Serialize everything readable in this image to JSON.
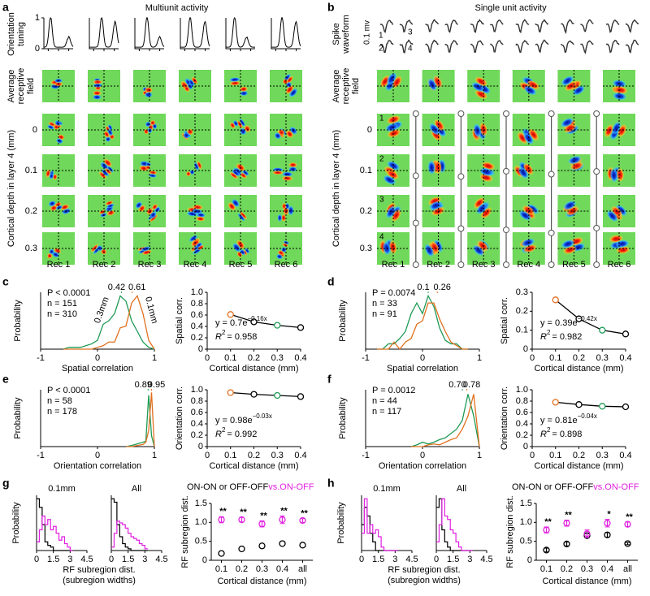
{
  "panels": {
    "a": {
      "letter": "a",
      "title": "Multiunit activity",
      "tuning_label": [
        "Orientation",
        "tuning"
      ],
      "tuning_yticks": [
        0,
        1
      ],
      "rf_label": [
        "Average",
        "receptive",
        "field"
      ],
      "depth_axis_label": "Cortical depth in layer 4 (mm)",
      "depths": [
        0,
        0.1,
        0.2,
        0.3
      ],
      "recordings": [
        "Rec 1",
        "Rec 2",
        "Rec 3",
        "Rec 4",
        "Rec 5",
        "Rec 6"
      ]
    },
    "b": {
      "letter": "b",
      "title": "Single unit activity",
      "waveform_label": [
        "Spike",
        "waveform"
      ],
      "scale_label": "0.1 mv",
      "waveform_units": [
        "1",
        "2",
        "3",
        "4"
      ],
      "rf_label": [
        "Average",
        "receptive",
        "field"
      ],
      "depth_axis_label": "Cortical depth in layer 4 (mm)",
      "depths": [
        0,
        0.1,
        0.2,
        0.3
      ],
      "unit_numbers": [
        "1",
        "2",
        "3",
        "4"
      ],
      "recordings": [
        "Rec 1",
        "Rec 2",
        "Rec 3",
        "Rec 4",
        "Rec 5",
        "Rec 6"
      ]
    },
    "c": {
      "type": "correlation",
      "letter": "c",
      "hist": {
        "xlabel": "Spatial correlation",
        "ylabel": "Probability",
        "xlim": [
          -1,
          1
        ],
        "xticks": [
          -1,
          0,
          1
        ],
        "ylim": [
          0,
          0.32
        ],
        "stat": "P < 0.0001",
        "x": [
          -0.6,
          -0.5,
          -0.4,
          -0.3,
          -0.2,
          -0.1,
          0,
          0.1,
          0.2,
          0.3,
          0.4,
          0.5,
          0.6,
          0.7,
          0.8,
          0.9,
          1.0
        ],
        "series": [
          {
            "name": "n = 151",
            "color": "#1f9a55",
            "peak": {
              "value": 0.42,
              "label": "0.42"
            },
            "distance_label": "0.3mm",
            "values": [
              0,
              0.01,
              0.01,
              0.01,
              0.02,
              0.03,
              0.05,
              0.14,
              0.16,
              0.2,
              0.3,
              0.27,
              0.16,
              0.1,
              0.04,
              0.01,
              0
            ]
          },
          {
            "name": "n = 310",
            "color": "#e0701e",
            "peak": {
              "value": 0.61,
              "label": "0.61"
            },
            "distance_label": "0.1mm",
            "values": [
              0,
              0,
              0,
              0,
              0,
              0,
              0.01,
              0.02,
              0.04,
              0.04,
              0.12,
              0.13,
              0.26,
              0.3,
              0.2,
              0.05,
              0
            ]
          }
        ]
      },
      "fit": {
        "xlabel": "Cortical distance (mm)",
        "ylabel": "Spatial corr.",
        "xlim": [
          0,
          0.4
        ],
        "xticks": [
          0,
          0.1,
          0.2,
          0.3,
          0.4
        ],
        "ylim": [
          0,
          1
        ],
        "yticks": [
          0,
          0.2,
          0.4,
          0.6,
          0.8,
          {
            "value": 1,
            "label": "1.0"
          }
        ],
        "x": [
          0.1,
          0.2,
          0.3,
          0.4
        ],
        "values": [
          0.61,
          0.48,
          0.42,
          0.38
        ],
        "point_colors": [
          "#e0701e",
          "#000000",
          "#1f9a55",
          "#000000"
        ],
        "equation": {
          "base": "y = 0.7e",
          "exponent": "−0.16x"
        },
        "r2": {
          "symbol": "R",
          "power": "2",
          "text": "= 0.958"
        }
      }
    },
    "d": {
      "type": "correlation",
      "letter": "d",
      "hist": {
        "xlabel": "Spatial correlation",
        "ylabel": "Probability",
        "xlim": [
          -1,
          1
        ],
        "xticks": [
          -1,
          0,
          1
        ],
        "ylim": [
          0,
          0.32
        ],
        "stat": "P = 0.0074",
        "x": [
          -0.8,
          -0.7,
          -0.6,
          -0.5,
          -0.4,
          -0.3,
          -0.2,
          -0.1,
          0,
          0.1,
          0.2,
          0.3,
          0.4,
          0.5,
          0.6,
          0.7,
          0.8
        ],
        "series": [
          {
            "name": "n = 33",
            "color": "#1f9a55",
            "peak": {
              "value": 0.1,
              "label": "0.1"
            },
            "values": [
              0,
              0,
              0.03,
              0.03,
              0.06,
              0.1,
              0.2,
              0.26,
              0.2,
              0.3,
              0.24,
              0.12,
              0.05,
              0.03,
              0.03,
              0,
              0
            ]
          },
          {
            "name": "n = 91",
            "color": "#e0701e",
            "peak": {
              "value": 0.26,
              "label": "0.26"
            },
            "values": [
              0,
              0,
              0,
              0.04,
              0,
              0.04,
              0.06,
              0.14,
              0.16,
              0.26,
              0.26,
              0.17,
              0.1,
              0.04,
              0.02,
              0,
              0
            ]
          }
        ]
      },
      "fit": {
        "xlabel": "Cortical distance (mm)",
        "ylabel": "Spatial corr.",
        "xlim": [
          0,
          0.4
        ],
        "xticks": [
          0,
          0.1,
          0.2,
          0.3,
          0.4
        ],
        "ylim": [
          0,
          0.3
        ],
        "yticks": [
          0,
          0.1,
          0.2,
          0.3
        ],
        "x": [
          0.1,
          0.2,
          0.3,
          0.4
        ],
        "values": [
          0.26,
          0.16,
          0.1,
          0.08
        ],
        "point_colors": [
          "#e0701e",
          "#000000",
          "#1f9a55",
          "#000000"
        ],
        "equation": {
          "base": "y = 0.39e",
          "exponent": "−0.42x"
        },
        "r2": {
          "symbol": "R",
          "power": "2",
          "text": "= 0.982"
        }
      }
    },
    "e": {
      "type": "correlation",
      "letter": "e",
      "hist": {
        "xlabel": "Orientation correlation",
        "ylabel": "Probability",
        "xlim": [
          -1,
          1
        ],
        "xticks": [
          -1,
          0,
          1
        ],
        "ylim": [
          0,
          1.05
        ],
        "stat": "P < 0.0001",
        "x": [
          0.5,
          0.6,
          0.7,
          0.8,
          0.85,
          0.9,
          0.95,
          1.0
        ],
        "series": [
          {
            "name": "n = 58",
            "color": "#1f9a55",
            "peak": {
              "value": 0.89,
              "label": "0.89"
            },
            "values": [
              0,
              0.02,
              0.05,
              0.08,
              0.1,
              0.95,
              0.2,
              0
            ]
          },
          {
            "name": "n = 178",
            "color": "#e0701e",
            "peak": {
              "value": 0.95,
              "label": "0.95"
            },
            "values": [
              0,
              0,
              0.02,
              0.04,
              0.08,
              0.3,
              1.0,
              0
            ]
          }
        ]
      },
      "fit": {
        "xlabel": "Cortical distance (mm)",
        "ylabel": "Orientation corr.",
        "xlim": [
          0,
          0.4
        ],
        "xticks": [
          0,
          0.1,
          0.2,
          0.3,
          0.4
        ],
        "ylim": [
          0,
          1
        ],
        "yticks": [
          0,
          0.2,
          0.4,
          0.6,
          0.8,
          {
            "value": 1,
            "label": "1.0"
          }
        ],
        "x": [
          0.1,
          0.2,
          0.3,
          0.4
        ],
        "values": [
          0.95,
          0.92,
          0.9,
          0.88
        ],
        "point_colors": [
          "#e0701e",
          "#000000",
          "#1f9a55",
          "#000000"
        ],
        "equation": {
          "base": "y = 0.98e",
          "exponent": "−0.03x"
        },
        "r2": {
          "symbol": "R",
          "power": "2",
          "text": "= 0.992"
        }
      }
    },
    "f": {
      "type": "correlation",
      "letter": "f",
      "hist": {
        "xlabel": "Orientation correlation",
        "ylabel": "Probability",
        "xlim": [
          -1,
          1
        ],
        "xticks": [
          -1,
          0,
          1
        ],
        "ylim": [
          0,
          0.65
        ],
        "stat": "P = 0.0012",
        "x": [
          -0.2,
          -0.1,
          0,
          0.1,
          0.2,
          0.3,
          0.4,
          0.5,
          0.6,
          0.7,
          0.8,
          0.9,
          1.0
        ],
        "series": [
          {
            "name": "n = 44",
            "color": "#1f9a55",
            "peak": {
              "value": 0.7,
              "label": "0.70"
            },
            "values": [
              0,
              0.02,
              0.05,
              0.03,
              0.05,
              0.08,
              0.1,
              0.15,
              0.2,
              0.3,
              0.6,
              0.35,
              0
            ]
          },
          {
            "name": "n = 117",
            "color": "#e0701e",
            "peak": {
              "value": 0.78,
              "label": "0.78"
            },
            "values": [
              0,
              0,
              0,
              0.02,
              0.03,
              0.02,
              0.05,
              0.08,
              0.1,
              0.2,
              0.35,
              0.6,
              0
            ]
          }
        ]
      },
      "fit": {
        "xlabel": "Cortical distance (mm)",
        "ylabel": "Orientation corr.",
        "xlim": [
          0,
          0.4
        ],
        "xticks": [
          0,
          0.1,
          0.2,
          0.3,
          0.4
        ],
        "ylim": [
          0,
          1
        ],
        "yticks": [
          0,
          0.2,
          0.4,
          0.6,
          0.8,
          {
            "value": 1,
            "label": "1.0"
          }
        ],
        "x": [
          0.1,
          0.2,
          0.3,
          0.4
        ],
        "values": [
          0.78,
          0.74,
          0.71,
          0.7
        ],
        "point_colors": [
          "#e0701e",
          "#000000",
          "#1f9a55",
          "#000000"
        ],
        "equation": {
          "base": "y = 0.81e",
          "exponent": "−0.04x"
        },
        "r2": {
          "symbol": "R",
          "power": "2",
          "text": "= 0.898"
        }
      }
    },
    "g": {
      "type": "subregion",
      "letter": "g",
      "hist": {
        "xlabel": [
          "RF subregion dist.",
          "(subregion widths)"
        ],
        "ylabel": "Probability",
        "xlim": [
          0,
          4.5
        ],
        "xticks": [
          0,
          1.5,
          3,
          4.5
        ],
        "ylim": [
          0,
          0.32
        ],
        "x": [
          0,
          0.25,
          0.5,
          0.75,
          1,
          1.25,
          1.5,
          1.75,
          2,
          2.25,
          2.5,
          2.75,
          3
        ],
        "plots": [
          {
            "title": "0.1mm",
            "series": [
              {
                "color": "#000000",
                "values": [
                  0.3,
                  0.25,
                  0.15,
                  0.05,
                  0.03,
                  0.02,
                  0,
                  0,
                  0,
                  0,
                  0,
                  0,
                  0
                ]
              },
              {
                "color": "#e020e0",
                "values": [
                  0.05,
                  0.12,
                  0.2,
                  0.15,
                  0.18,
                  0.12,
                  0.14,
                  0.1,
                  0.06,
                  0.08,
                  0.04,
                  0.02,
                  0
                ]
              }
            ]
          },
          {
            "title": "All",
            "series": [
              {
                "color": "#000000",
                "values": [
                  0.3,
                  0.28,
                  0.15,
                  0.08,
                  0.04,
                  0.02,
                  0.01,
                  0,
                  0,
                  0,
                  0,
                  0,
                  0
                ]
              },
              {
                "color": "#e020e0",
                "values": [
                  0.02,
                  0.1,
                  0.17,
                  0.16,
                  0.15,
                  0.13,
                  0.1,
                  0.08,
                  0.07,
                  0.06,
                  0.04,
                  0.03,
                  0.01
                ]
              }
            ]
          }
        ]
      },
      "summary": {
        "xlabel": "Cortical distance (mm)",
        "ylabel": "RF subregion dist.",
        "categories": [
          "0.1",
          "0.2",
          "0.3",
          "0.4",
          "all"
        ],
        "ylim": [
          0,
          1.5
        ],
        "yticks": [
          0,
          0.5,
          {
            "value": 1,
            "label": "1.0"
          },
          1.5
        ],
        "legend_joiner": "vs.",
        "series": [
          {
            "name": "ON-ON or OFF-OFF",
            "color": "#000000",
            "values": [
              0.18,
              0.3,
              0.38,
              0.44,
              0.4
            ]
          },
          {
            "name": "ON-OFF",
            "color": "#e020e0",
            "values": [
              1.07,
              1.07,
              0.96,
              1.07,
              1.05
            ],
            "errors": [
              0.08,
              0.06,
              0.08,
              0.1,
              0.05
            ]
          }
        ],
        "stars": [
          "**",
          "**",
          "**",
          "**",
          "**"
        ]
      }
    },
    "h": {
      "type": "subregion",
      "letter": "h",
      "hist": {
        "xlabel": [
          "RF subregion dist.",
          "(subregion widths)"
        ],
        "ylabel": "Probability",
        "xlim": [
          0,
          4.5
        ],
        "xticks": [
          0,
          1.5,
          3,
          4.5
        ],
        "ylim": [
          0,
          0.32
        ],
        "x": [
          0,
          0.25,
          0.5,
          0.75,
          1,
          1.25,
          1.5,
          1.75,
          2,
          2.25,
          2.5,
          2.75,
          3
        ],
        "plots": [
          {
            "title": "0.1mm",
            "series": [
              {
                "color": "#000000",
                "values": [
                  0.15,
                  0.25,
                  0.2,
                  0.1,
                  0.05,
                  0,
                  0,
                  0,
                  0,
                  0,
                  0,
                  0,
                  0
                ]
              },
              {
                "color": "#e020e0",
                "values": [
                  0.1,
                  0.3,
                  0.1,
                  0.15,
                  0.1,
                  0.12,
                  0.08,
                  0.02,
                  0,
                  0,
                  0,
                  0,
                  0
                ]
              }
            ]
          },
          {
            "title": "All",
            "series": [
              {
                "color": "#000000",
                "values": [
                  0.25,
                  0.3,
                  0.12,
                  0.05,
                  0.02,
                  0,
                  0,
                  0,
                  0,
                  0,
                  0,
                  0,
                  0
                ]
              },
              {
                "color": "#e020e0",
                "values": [
                  0.05,
                  0.15,
                  0.3,
                  0.2,
                  0.18,
                  0.12,
                  0.1,
                  0.05,
                  0.02,
                  0,
                  0,
                  0,
                  0
                ]
              }
            ]
          }
        ]
      },
      "summary": {
        "xlabel": "Cortical distance (mm)",
        "ylabel": "RF subregion dist.",
        "categories": [
          "0.1",
          "0.2",
          "0.3",
          "0.4",
          "all"
        ],
        "ylim": [
          0,
          1.5
        ],
        "yticks": [
          0,
          0.5,
          {
            "value": 1,
            "label": "1.0"
          },
          1.5
        ],
        "legend_joiner": "vs.",
        "series": [
          {
            "name": "ON-ON or OFF-OFF",
            "color": "#000000",
            "values": [
              0.27,
              0.43,
              0.65,
              0.67,
              0.44
            ],
            "errors": [
              0.05,
              0.05,
              0.06,
              0.06,
              0.03
            ]
          },
          {
            "name": "ON-OFF",
            "color": "#e020e0",
            "values": [
              0.8,
              0.98,
              0.7,
              0.98,
              0.95
            ],
            "errors": [
              0.08,
              0.08,
              0.1,
              0.1,
              0.06
            ]
          }
        ],
        "stars": [
          "**",
          "**",
          null,
          "*",
          "**"
        ]
      }
    }
  }
}
